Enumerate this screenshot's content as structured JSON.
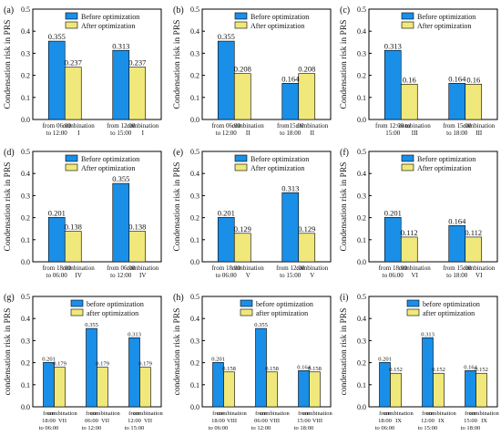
{
  "colors": {
    "before": "#1a8fe8",
    "after": "#f0e87a",
    "axis": "#000000"
  },
  "chart_data": [
    {
      "panel": "(a)",
      "type": "bar",
      "ylabel": "Condensation risk in PRS",
      "ylim": [
        0,
        0.5
      ],
      "yticks": [
        "0.0",
        "0.1",
        "0.2",
        "0.3",
        "0.4",
        "0.5"
      ],
      "legend": [
        "Before optimization",
        "After optimization"
      ],
      "groups": [
        {
          "left": [
            "from 06:00",
            "to 12:00"
          ],
          "right": [
            "combination",
            "I"
          ],
          "before": 0.355,
          "after": 0.237,
          "before_label": "0.355",
          "after_label": "0.237"
        },
        {
          "left": [
            "from 12:00",
            "to 15:00"
          ],
          "right": [
            "combination",
            "I"
          ],
          "before": 0.313,
          "after": 0.237,
          "before_label": "0.313",
          "after_label": "0.237"
        }
      ]
    },
    {
      "panel": "(b)",
      "type": "bar",
      "ylabel": "Condensation risk in PRS",
      "ylim": [
        0,
        0.5
      ],
      "yticks": [
        "0.0",
        "0.1",
        "0.2",
        "0.3",
        "0.4",
        "0.5"
      ],
      "legend": [
        "Before optimization",
        "After optimization"
      ],
      "groups": [
        {
          "left": [
            "from 06:00",
            "to 12:00"
          ],
          "right": [
            "combination",
            "II"
          ],
          "before": 0.355,
          "after": 0.208,
          "before_label": "0.355",
          "after_label": "0.208"
        },
        {
          "left": [
            "from15:00",
            "to 18:00"
          ],
          "right": [
            "combination",
            "II"
          ],
          "before": 0.164,
          "after": 0.208,
          "before_label": "0.164",
          "after_label": "0.208"
        }
      ]
    },
    {
      "panel": "(c)",
      "type": "bar",
      "ylabel": "Condensation risk in PRS",
      "ylim": [
        0,
        0.5
      ],
      "yticks": [
        "0.0",
        "0.1",
        "0.2",
        "0.3",
        "0.4",
        "0.5"
      ],
      "legend": [
        "Before optimization",
        "After optimization"
      ],
      "groups": [
        {
          "left": [
            "from 12:00 to",
            "15:00"
          ],
          "right": [
            "combination",
            "III"
          ],
          "before": 0.313,
          "after": 0.16,
          "before_label": "0.313",
          "after_label": "0.16"
        },
        {
          "left": [
            "from 15:00",
            "to 18:00"
          ],
          "right": [
            "combination",
            "III"
          ],
          "before": 0.164,
          "after": 0.16,
          "before_label": "0.164",
          "after_label": "0.16"
        }
      ]
    },
    {
      "panel": "(d)",
      "type": "bar",
      "ylabel": "Condensation risk in PRS",
      "ylim": [
        0,
        0.5
      ],
      "yticks": [
        "0.0",
        "0.1",
        "0.2",
        "0.3",
        "0.4",
        "0.5"
      ],
      "legend": [
        "Before optimization",
        "After optimization"
      ],
      "groups": [
        {
          "left": [
            "from 18:00",
            "to 06:00"
          ],
          "right": [
            "combination",
            "IV"
          ],
          "before": 0.201,
          "after": 0.138,
          "before_label": "0.201",
          "after_label": "0.138"
        },
        {
          "left": [
            "from 06:00",
            "to 12:00"
          ],
          "right": [
            "combination",
            "IV"
          ],
          "before": 0.355,
          "after": 0.138,
          "before_label": "0.355",
          "after_label": "0.138"
        }
      ]
    },
    {
      "panel": "(e)",
      "type": "bar",
      "ylabel": "Condensation risk in PRS",
      "ylim": [
        0,
        0.5
      ],
      "yticks": [
        "0.0",
        "0.1",
        "0.2",
        "0.3",
        "0.4",
        "0.5"
      ],
      "legend": [
        "Before optimization",
        "After optimization"
      ],
      "groups": [
        {
          "left": [
            "from 18:00",
            "to 06:00"
          ],
          "right": [
            "combination",
            "V"
          ],
          "before": 0.201,
          "after": 0.129,
          "before_label": "0.201",
          "after_label": "0.129"
        },
        {
          "left": [
            "from 12:00",
            "to 15:00"
          ],
          "right": [
            "combination",
            "V"
          ],
          "before": 0.313,
          "after": 0.129,
          "before_label": "0.313",
          "after_label": "0.129"
        }
      ]
    },
    {
      "panel": "(f)",
      "type": "bar",
      "ylabel": "Condensation risk in PRS",
      "ylim": [
        0,
        0.5
      ],
      "yticks": [
        "0.0",
        "0.1",
        "0.2",
        "0.3",
        "0.4",
        "0.5"
      ],
      "legend": [
        "Before optimization",
        "After optimization"
      ],
      "groups": [
        {
          "left": [
            "from 18:00",
            "to 06:00"
          ],
          "right": [
            "combination",
            "VI"
          ],
          "before": 0.201,
          "after": 0.112,
          "before_label": "0.201",
          "after_label": "0.112"
        },
        {
          "left": [
            "from 15:00",
            "to 18:00"
          ],
          "right": [
            "combination",
            "VI"
          ],
          "before": 0.164,
          "after": 0.112,
          "before_label": "0.164",
          "after_label": "0.112"
        }
      ]
    },
    {
      "panel": "(g)",
      "type": "bar",
      "ylabel": "condensation risk in PRS",
      "ylim": [
        0,
        0.5
      ],
      "yticks": [
        "0.0",
        "0.1",
        "0.2",
        "0.3",
        "0.4",
        "0.5"
      ],
      "legend": [
        "before optimization",
        "after optimization"
      ],
      "groups": [
        {
          "left": [
            "from",
            "18:00",
            "to 06:00"
          ],
          "right": [
            "combination",
            "VII"
          ],
          "before": 0.201,
          "after": 0.179,
          "before_label": "0.201",
          "after_label": "0.179"
        },
        {
          "left": [
            "from",
            "06:00",
            "to 12:00"
          ],
          "right": [
            "combination",
            "VII"
          ],
          "before": 0.355,
          "after": 0.179,
          "before_label": "0.355",
          "after_label": "0.179"
        },
        {
          "left": [
            "from",
            "12:00",
            "to 15:00"
          ],
          "right": [
            "combination",
            "VII"
          ],
          "before": 0.313,
          "after": 0.179,
          "before_label": "0.313",
          "after_label": "0.179"
        }
      ]
    },
    {
      "panel": "(h)",
      "type": "bar",
      "ylabel": "condensation risk in PRS",
      "ylim": [
        0,
        0.5
      ],
      "yticks": [
        "0.0",
        "0.1",
        "0.2",
        "0.3",
        "0.4",
        "0.5"
      ],
      "legend": [
        "before optimization",
        "after optimization"
      ],
      "groups": [
        {
          "left": [
            "from",
            "18:00",
            "to 06:00"
          ],
          "right": [
            "combination",
            "VIII"
          ],
          "before": 0.201,
          "after": 0.158,
          "before_label": "0.201",
          "after_label": "0.158"
        },
        {
          "left": [
            "from",
            "06:00",
            "to 12:00"
          ],
          "right": [
            "combination",
            "VIII"
          ],
          "before": 0.355,
          "after": 0.158,
          "before_label": "0.355",
          "after_label": "0.158"
        },
        {
          "left": [
            "from",
            "15:00",
            "to 18:00"
          ],
          "right": [
            "combination",
            "VIII"
          ],
          "before": 0.164,
          "after": 0.158,
          "before_label": "0.164",
          "after_label": "0.158"
        }
      ]
    },
    {
      "panel": "(i)",
      "type": "bar",
      "ylabel": "condensation risk in PRS",
      "ylim": [
        0,
        0.5
      ],
      "yticks": [
        "0.0",
        "0.1",
        "0.2",
        "0.3",
        "0.4",
        "0.5"
      ],
      "legend": [
        "before optimization",
        "after optimization"
      ],
      "groups": [
        {
          "left": [
            "from",
            "18:00",
            "to 06:00"
          ],
          "right": [
            "combination",
            "IX"
          ],
          "before": 0.201,
          "after": 0.152,
          "before_label": "0.201",
          "after_label": "0.152"
        },
        {
          "left": [
            "from",
            "12:00",
            "to 15:00"
          ],
          "right": [
            "combination",
            "IX"
          ],
          "before": 0.313,
          "after": 0.152,
          "before_label": "0.313",
          "after_label": "0.152"
        },
        {
          "left": [
            "from",
            "15:00",
            "to 18:00"
          ],
          "right": [
            "combination",
            "IX"
          ],
          "before": 0.164,
          "after": 0.152,
          "before_label": "0.164",
          "after_label": "0.152"
        }
      ]
    }
  ]
}
